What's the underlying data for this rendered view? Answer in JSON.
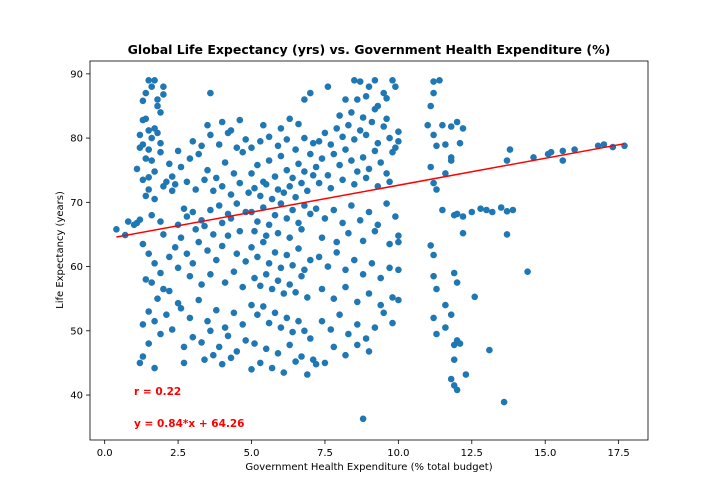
{
  "chart_data": {
    "type": "scatter",
    "title": "Global Life Expectancy (yrs) vs. Government Health Expenditure (%)",
    "xlabel": "Government Health Expenditure (% total budget)",
    "ylabel": "Life Expectancy (years)",
    "xlim": [
      -0.5,
      18.5
    ],
    "ylim": [
      33,
      92
    ],
    "xticks": [
      0.0,
      2.5,
      5.0,
      7.5,
      10.0,
      12.5,
      15.0,
      17.5
    ],
    "xtick_labels": [
      "0.0",
      "2.5",
      "5.0",
      "7.5",
      "10.0",
      "12.5",
      "15.0",
      "17.5"
    ],
    "yticks": [
      40,
      50,
      60,
      70,
      80,
      90
    ],
    "ytick_labels": [
      "40",
      "50",
      "60",
      "70",
      "80",
      "90"
    ],
    "grid": false,
    "point_color": "#1f77b4",
    "regression": {
      "slope": 0.84,
      "intercept": 64.26,
      "x_range": [
        0.4,
        17.7
      ],
      "color": "#ff0000"
    },
    "annotations": [
      {
        "text": "r = 0.22",
        "x": 1.0,
        "y": 40.0,
        "color": "#ff0000"
      },
      {
        "text": "y = 0.84*x + 64.26",
        "x": 1.0,
        "y": 35.0,
        "color": "#ff0000"
      }
    ],
    "points": [
      [
        0.4,
        65.8
      ],
      [
        0.7,
        64.9
      ],
      [
        0.8,
        67.0
      ],
      [
        1.0,
        66.5
      ],
      [
        1.1,
        66.8
      ],
      [
        1.2,
        67.3
      ],
      [
        1.1,
        75.2
      ],
      [
        1.2,
        78.5
      ],
      [
        1.3,
        79.0
      ],
      [
        1.2,
        80.5
      ],
      [
        1.3,
        82.8
      ],
      [
        1.4,
        83.0
      ],
      [
        1.5,
        81.2
      ],
      [
        1.6,
        80.0
      ],
      [
        1.7,
        81.5
      ],
      [
        1.8,
        80.8
      ],
      [
        1.9,
        79.2
      ],
      [
        1.4,
        76.8
      ],
      [
        1.5,
        78.2
      ],
      [
        1.3,
        73.5
      ],
      [
        1.5,
        73.9
      ],
      [
        1.7,
        74.8
      ],
      [
        1.6,
        76.5
      ],
      [
        1.9,
        77.8
      ],
      [
        1.3,
        85.8
      ],
      [
        1.4,
        87.0
      ],
      [
        1.5,
        89.0
      ],
      [
        1.6,
        88.0
      ],
      [
        1.7,
        89.0
      ],
      [
        1.8,
        86.0
      ],
      [
        1.9,
        84.0
      ],
      [
        2.0,
        86.8
      ],
      [
        2.0,
        88.0
      ],
      [
        1.8,
        85.0
      ],
      [
        1.5,
        72.0
      ],
      [
        1.7,
        70.5
      ],
      [
        1.6,
        68.0
      ],
      [
        1.9,
        67.0
      ],
      [
        2.0,
        72.5
      ],
      [
        1.4,
        71.0
      ],
      [
        2.1,
        73.2
      ],
      [
        2.3,
        71.8
      ],
      [
        1.3,
        63.5
      ],
      [
        1.5,
        62.0
      ],
      [
        1.7,
        60.5
      ],
      [
        1.9,
        59.0
      ],
      [
        2.0,
        56.5
      ],
      [
        1.6,
        57.5
      ],
      [
        1.4,
        58.0
      ],
      [
        1.8,
        55.0
      ],
      [
        2.2,
        56.2
      ],
      [
        2.5,
        54.3
      ],
      [
        2.1,
        52.5
      ],
      [
        1.7,
        51.5
      ],
      [
        1.5,
        53.0
      ],
      [
        1.3,
        51.0
      ],
      [
        1.9,
        49.5
      ],
      [
        1.5,
        48.0
      ],
      [
        1.3,
        46.0
      ],
      [
        1.2,
        45.0
      ],
      [
        1.7,
        44.2
      ],
      [
        2.3,
        50.2
      ],
      [
        2.7,
        47.5
      ],
      [
        2.0,
        65.0
      ],
      [
        2.4,
        63.0
      ],
      [
        2.6,
        64.5
      ],
      [
        2.8,
        62.0
      ],
      [
        3.0,
        60.5
      ],
      [
        3.2,
        63.8
      ],
      [
        3.5,
        62.5
      ],
      [
        3.8,
        61.0
      ],
      [
        4.0,
        63.2
      ],
      [
        4.2,
        64.8
      ],
      [
        4.5,
        62.0
      ],
      [
        4.8,
        60.8
      ],
      [
        2.2,
        61.5
      ],
      [
        2.5,
        59.8
      ],
      [
        2.9,
        58.5
      ],
      [
        3.3,
        57.2
      ],
      [
        3.6,
        58.8
      ],
      [
        4.1,
        57.5
      ],
      [
        4.4,
        59.2
      ],
      [
        4.7,
        56.8
      ],
      [
        2.5,
        66.5
      ],
      [
        2.8,
        67.8
      ],
      [
        3.0,
        68.5
      ],
      [
        3.3,
        67.2
      ],
      [
        3.6,
        68.8
      ],
      [
        3.9,
        69.5
      ],
      [
        4.2,
        68.2
      ],
      [
        4.5,
        69.8
      ],
      [
        4.8,
        68.5
      ],
      [
        2.7,
        69.0
      ],
      [
        3.1,
        65.8
      ],
      [
        3.4,
        66.3
      ],
      [
        3.7,
        65.0
      ],
      [
        4.0,
        66.8
      ],
      [
        4.3,
        67.5
      ],
      [
        4.6,
        65.5
      ],
      [
        2.3,
        74.0
      ],
      [
        2.6,
        75.5
      ],
      [
        2.9,
        76.8
      ],
      [
        3.2,
        77.5
      ],
      [
        3.5,
        75.0
      ],
      [
        3.8,
        73.8
      ],
      [
        4.1,
        76.2
      ],
      [
        4.4,
        74.5
      ],
      [
        4.7,
        77.8
      ],
      [
        2.4,
        72.8
      ],
      [
        2.8,
        73.2
      ],
      [
        3.1,
        72.0
      ],
      [
        3.4,
        73.5
      ],
      [
        3.7,
        71.8
      ],
      [
        4.0,
        72.5
      ],
      [
        4.3,
        71.2
      ],
      [
        4.6,
        73.0
      ],
      [
        4.9,
        71.5
      ],
      [
        2.2,
        76.0
      ],
      [
        2.5,
        78.0
      ],
      [
        3.0,
        79.5
      ],
      [
        3.3,
        78.8
      ],
      [
        3.6,
        80.5
      ],
      [
        3.9,
        79.0
      ],
      [
        4.2,
        80.8
      ],
      [
        4.5,
        78.5
      ],
      [
        4.8,
        79.8
      ],
      [
        3.5,
        82.0
      ],
      [
        4.0,
        82.5
      ],
      [
        4.3,
        81.2
      ],
      [
        4.6,
        82.8
      ],
      [
        3.6,
        87.0
      ],
      [
        2.6,
        53.5
      ],
      [
        2.9,
        52.0
      ],
      [
        3.2,
        54.8
      ],
      [
        3.5,
        51.5
      ],
      [
        3.8,
        53.2
      ],
      [
        4.1,
        50.5
      ],
      [
        4.4,
        52.8
      ],
      [
        4.7,
        51.0
      ],
      [
        3.0,
        49.0
      ],
      [
        3.3,
        48.2
      ],
      [
        3.6,
        50.0
      ],
      [
        3.9,
        47.5
      ],
      [
        4.2,
        49.2
      ],
      [
        4.5,
        46.8
      ],
      [
        4.8,
        48.5
      ],
      [
        3.4,
        45.5
      ],
      [
        3.7,
        46.2
      ],
      [
        4.0,
        44.8
      ],
      [
        4.3,
        45.8
      ],
      [
        2.7,
        45.0
      ],
      [
        5.0,
        74.5
      ],
      [
        5.2,
        75.8
      ],
      [
        5.4,
        73.2
      ],
      [
        5.6,
        76.5
      ],
      [
        5.8,
        74.0
      ],
      [
        6.0,
        77.2
      ],
      [
        6.2,
        75.0
      ],
      [
        6.4,
        73.8
      ],
      [
        6.6,
        76.0
      ],
      [
        6.8,
        74.8
      ],
      [
        7.0,
        77.5
      ],
      [
        5.1,
        72.2
      ],
      [
        5.3,
        71.0
      ],
      [
        5.5,
        72.8
      ],
      [
        5.7,
        70.5
      ],
      [
        5.9,
        72.0
      ],
      [
        6.1,
        71.5
      ],
      [
        6.3,
        72.5
      ],
      [
        6.5,
        70.8
      ],
      [
        6.7,
        73.0
      ],
      [
        6.9,
        71.8
      ],
      [
        7.1,
        74.2
      ],
      [
        5.0,
        78.5
      ],
      [
        5.3,
        79.5
      ],
      [
        5.6,
        80.2
      ],
      [
        5.9,
        78.8
      ],
      [
        6.2,
        79.8
      ],
      [
        6.5,
        78.2
      ],
      [
        6.8,
        80.0
      ],
      [
        7.1,
        79.2
      ],
      [
        5.4,
        82.0
      ],
      [
        6.0,
        81.5
      ],
      [
        6.6,
        82.2
      ],
      [
        6.8,
        86.0
      ],
      [
        7.0,
        87.0
      ],
      [
        6.3,
        83.0
      ],
      [
        5.0,
        68.5
      ],
      [
        5.2,
        67.0
      ],
      [
        5.4,
        69.2
      ],
      [
        5.6,
        66.5
      ],
      [
        5.8,
        68.0
      ],
      [
        6.0,
        69.8
      ],
      [
        6.2,
        67.5
      ],
      [
        6.4,
        68.8
      ],
      [
        6.6,
        66.8
      ],
      [
        6.8,
        69.5
      ],
      [
        7.0,
        68.2
      ],
      [
        5.1,
        65.5
      ],
      [
        5.5,
        64.8
      ],
      [
        5.9,
        65.2
      ],
      [
        6.3,
        64.5
      ],
      [
        6.7,
        65.8
      ],
      [
        5.0,
        63.0
      ],
      [
        5.2,
        61.5
      ],
      [
        5.4,
        63.8
      ],
      [
        5.6,
        60.5
      ],
      [
        5.8,
        62.2
      ],
      [
        6.0,
        59.8
      ],
      [
        6.2,
        61.8
      ],
      [
        6.4,
        60.2
      ],
      [
        6.6,
        62.8
      ],
      [
        6.8,
        59.5
      ],
      [
        7.0,
        61.0
      ],
      [
        5.1,
        58.2
      ],
      [
        5.3,
        57.0
      ],
      [
        5.5,
        58.8
      ],
      [
        5.7,
        56.5
      ],
      [
        5.9,
        57.8
      ],
      [
        6.1,
        55.8
      ],
      [
        6.3,
        57.2
      ],
      [
        6.5,
        56.0
      ],
      [
        6.7,
        58.5
      ],
      [
        6.9,
        55.2
      ],
      [
        5.0,
        54.0
      ],
      [
        5.2,
        52.5
      ],
      [
        5.4,
        53.8
      ],
      [
        5.6,
        51.2
      ],
      [
        5.8,
        52.8
      ],
      [
        6.0,
        50.5
      ],
      [
        6.2,
        52.0
      ],
      [
        6.4,
        49.8
      ],
      [
        6.6,
        51.5
      ],
      [
        6.8,
        50.0
      ],
      [
        7.0,
        48.8
      ],
      [
        5.1,
        48.0
      ],
      [
        5.5,
        47.2
      ],
      [
        5.9,
        46.5
      ],
      [
        6.3,
        47.8
      ],
      [
        6.7,
        46.0
      ],
      [
        7.1,
        45.5
      ],
      [
        5.3,
        45.0
      ],
      [
        5.7,
        44.2
      ],
      [
        6.1,
        43.5
      ],
      [
        6.5,
        45.2
      ],
      [
        6.9,
        43.2
      ],
      [
        7.2,
        44.8
      ],
      [
        5.0,
        44.0
      ],
      [
        7.2,
        75.5
      ],
      [
        7.4,
        76.8
      ],
      [
        7.6,
        74.2
      ],
      [
        7.8,
        77.5
      ],
      [
        8.0,
        75.8
      ],
      [
        8.2,
        78.2
      ],
      [
        8.4,
        76.5
      ],
      [
        8.6,
        74.8
      ],
      [
        8.8,
        77.0
      ],
      [
        9.0,
        75.2
      ],
      [
        9.2,
        78.0
      ],
      [
        9.4,
        76.2
      ],
      [
        9.6,
        74.5
      ],
      [
        9.8,
        77.8
      ],
      [
        7.3,
        73.0
      ],
      [
        7.7,
        72.2
      ],
      [
        8.1,
        73.5
      ],
      [
        8.5,
        72.8
      ],
      [
        8.9,
        73.8
      ],
      [
        9.3,
        72.5
      ],
      [
        9.7,
        73.2
      ],
      [
        7.3,
        79.5
      ],
      [
        7.5,
        80.8
      ],
      [
        7.7,
        79.0
      ],
      [
        7.9,
        81.5
      ],
      [
        8.1,
        80.2
      ],
      [
        8.3,
        82.0
      ],
      [
        8.5,
        79.8
      ],
      [
        8.7,
        81.2
      ],
      [
        8.9,
        80.5
      ],
      [
        9.1,
        82.5
      ],
      [
        9.3,
        79.2
      ],
      [
        9.5,
        81.8
      ],
      [
        9.7,
        80.0
      ],
      [
        9.9,
        78.5
      ],
      [
        10.0,
        81.0
      ],
      [
        10.0,
        79.5
      ],
      [
        8.0,
        83.5
      ],
      [
        8.4,
        84.0
      ],
      [
        8.8,
        83.2
      ],
      [
        9.2,
        84.5
      ],
      [
        9.6,
        83.0
      ],
      [
        7.6,
        88.0
      ],
      [
        8.2,
        86.0
      ],
      [
        8.5,
        89.0
      ],
      [
        8.7,
        88.8
      ],
      [
        8.9,
        86.5
      ],
      [
        9.0,
        88.0
      ],
      [
        9.2,
        89.0
      ],
      [
        9.3,
        85.0
      ],
      [
        9.5,
        87.0
      ],
      [
        9.6,
        86.2
      ],
      [
        9.8,
        89.0
      ],
      [
        9.9,
        88.0
      ],
      [
        8.6,
        86.0
      ],
      [
        7.2,
        69.0
      ],
      [
        7.5,
        67.5
      ],
      [
        7.8,
        68.8
      ],
      [
        8.1,
        66.8
      ],
      [
        8.4,
        69.5
      ],
      [
        8.7,
        67.2
      ],
      [
        9.0,
        68.5
      ],
      [
        9.3,
        66.5
      ],
      [
        9.6,
        69.8
      ],
      [
        9.9,
        67.8
      ],
      [
        7.4,
        64.5
      ],
      [
        7.9,
        63.8
      ],
      [
        8.3,
        65.2
      ],
      [
        8.8,
        64.0
      ],
      [
        9.2,
        65.5
      ],
      [
        9.7,
        63.5
      ],
      [
        10.0,
        64.8
      ],
      [
        10.0,
        63.8
      ],
      [
        7.3,
        61.5
      ],
      [
        7.6,
        60.0
      ],
      [
        7.9,
        62.2
      ],
      [
        8.2,
        59.5
      ],
      [
        8.5,
        61.0
      ],
      [
        8.8,
        58.8
      ],
      [
        9.1,
        60.5
      ],
      [
        9.4,
        58.2
      ],
      [
        9.7,
        59.8
      ],
      [
        10.0,
        59.5
      ],
      [
        7.4,
        56.5
      ],
      [
        7.8,
        55.0
      ],
      [
        8.2,
        56.8
      ],
      [
        8.6,
        54.5
      ],
      [
        9.0,
        55.8
      ],
      [
        9.4,
        54.0
      ],
      [
        9.8,
        55.2
      ],
      [
        10.0,
        54.8
      ],
      [
        7.4,
        51.5
      ],
      [
        7.7,
        50.2
      ],
      [
        8.0,
        52.5
      ],
      [
        8.3,
        49.5
      ],
      [
        8.6,
        51.0
      ],
      [
        8.9,
        48.8
      ],
      [
        9.2,
        50.5
      ],
      [
        9.5,
        52.8
      ],
      [
        9.8,
        51.2
      ],
      [
        7.8,
        47.5
      ],
      [
        8.2,
        46.2
      ],
      [
        8.6,
        47.8
      ],
      [
        9.0,
        46.8
      ],
      [
        7.5,
        45.0
      ],
      [
        8.8,
        36.3
      ],
      [
        11.0,
        82.0
      ],
      [
        11.1,
        85.0
      ],
      [
        11.2,
        87.0
      ],
      [
        11.2,
        88.8
      ],
      [
        11.4,
        89.0
      ],
      [
        11.2,
        80.5
      ],
      [
        11.5,
        82.0
      ],
      [
        11.8,
        81.8
      ],
      [
        12.0,
        82.5
      ],
      [
        12.2,
        81.5
      ],
      [
        11.3,
        78.8
      ],
      [
        11.6,
        79.0
      ],
      [
        11.8,
        77.0
      ],
      [
        12.1,
        79.2
      ],
      [
        11.1,
        75.5
      ],
      [
        11.2,
        73.0
      ],
      [
        11.3,
        72.0
      ],
      [
        11.6,
        74.5
      ],
      [
        11.8,
        76.5
      ],
      [
        11.5,
        68.8
      ],
      [
        11.9,
        68.0
      ],
      [
        12.0,
        68.2
      ],
      [
        12.2,
        67.8
      ],
      [
        12.2,
        65.2
      ],
      [
        11.1,
        63.3
      ],
      [
        11.2,
        61.8
      ],
      [
        11.2,
        58.5
      ],
      [
        11.3,
        56.5
      ],
      [
        11.6,
        54.0
      ],
      [
        11.8,
        52.5
      ],
      [
        11.9,
        59.0
      ],
      [
        12.0,
        57.5
      ],
      [
        11.2,
        52.0
      ],
      [
        11.3,
        49.5
      ],
      [
        12.0,
        48.5
      ],
      [
        12.1,
        48.0
      ],
      [
        11.9,
        47.8
      ],
      [
        11.6,
        50.5
      ],
      [
        11.9,
        45.5
      ],
      [
        11.8,
        42.5
      ],
      [
        11.9,
        41.5
      ],
      [
        12.0,
        40.8
      ],
      [
        12.3,
        43.2
      ],
      [
        12.5,
        68.5
      ],
      [
        12.8,
        69.0
      ],
      [
        13.0,
        68.8
      ],
      [
        13.2,
        68.5
      ],
      [
        13.5,
        69.2
      ],
      [
        13.7,
        68.6
      ],
      [
        13.9,
        68.8
      ],
      [
        12.6,
        55.3
      ],
      [
        13.1,
        47.0
      ],
      [
        13.6,
        38.9
      ],
      [
        13.7,
        65.0
      ],
      [
        14.4,
        59.2
      ],
      [
        13.7,
        76.5
      ],
      [
        13.8,
        78.2
      ],
      [
        14.6,
        77.0
      ],
      [
        15.1,
        77.5
      ],
      [
        15.2,
        77.8
      ],
      [
        15.6,
        78.0
      ],
      [
        16.0,
        78.2
      ],
      [
        16.8,
        78.8
      ],
      [
        17.0,
        79.0
      ],
      [
        17.3,
        78.6
      ],
      [
        17.7,
        78.8
      ],
      [
        15.6,
        76.5
      ]
    ]
  }
}
